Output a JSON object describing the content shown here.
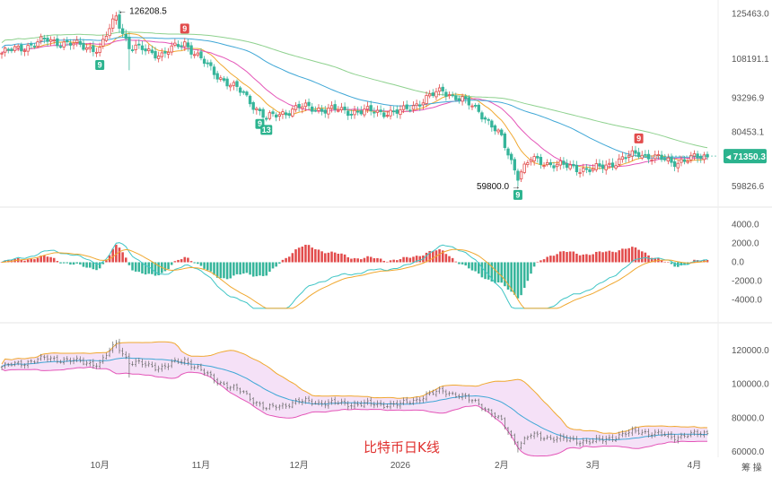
{
  "chart_data": [
    {
      "type": "candlestick",
      "panel": "price",
      "title": "",
      "y_ticks": [
        "125463.0",
        "108191.1",
        "93296.9",
        "80453.1",
        "59826.6"
      ],
      "ylim": [
        55000,
        128000
      ],
      "current_price": "71350.3",
      "high_annotation": "126208.5",
      "low_annotation": "59800.0",
      "badges": [
        {
          "label": "9",
          "x": "2025-10-01",
          "kind": "green"
        },
        {
          "label": "9",
          "x": "2025-10-27",
          "kind": "red"
        },
        {
          "label": "9",
          "x": "2025-11-19",
          "kind": "green"
        },
        {
          "label": "13",
          "x": "2025-11-21",
          "kind": "green"
        },
        {
          "label": "9",
          "x": "2026-02-06",
          "kind": "green"
        },
        {
          "label": "9",
          "x": "2026-03-15",
          "kind": "red"
        }
      ],
      "anchors_close": [
        [
          "2025-09-01",
          110500
        ],
        [
          "2025-09-15",
          115500
        ],
        [
          "2025-10-01",
          112000
        ],
        [
          "2025-10-06",
          124500
        ],
        [
          "2025-10-10",
          113000
        ],
        [
          "2025-10-20",
          110000
        ],
        [
          "2025-10-27",
          114500
        ],
        [
          "2025-11-05",
          103000
        ],
        [
          "2025-11-14",
          95000
        ],
        [
          "2025-11-21",
          85500
        ],
        [
          "2025-12-01",
          90000
        ],
        [
          "2025-12-15",
          88500
        ],
        [
          "2026-01-01",
          88000
        ],
        [
          "2026-01-14",
          96500
        ],
        [
          "2026-01-25",
          89000
        ],
        [
          "2026-02-01",
          78000
        ],
        [
          "2026-02-06",
          64000
        ],
        [
          "2026-02-10",
          70000
        ],
        [
          "2026-02-20",
          67500
        ],
        [
          "2026-03-01",
          66000
        ],
        [
          "2026-03-15",
          72500
        ],
        [
          "2026-03-25",
          69000
        ],
        [
          "2026-04-05",
          71350
        ]
      ],
      "ma_series_colors": [
        "#f0a830",
        "#e455b8",
        "#3fa7d6",
        "#8ed18e"
      ]
    },
    {
      "type": "bar",
      "panel": "macd",
      "y_ticks": [
        "4000.0",
        "2000.0",
        "0.0",
        "-2000.0",
        "-4000.0"
      ],
      "ylim": [
        -5000,
        5000
      ],
      "positive_color": "#e24c4c",
      "negative_color": "#36b59b",
      "line_colors": [
        "#3fc5c5",
        "#f0a830"
      ]
    },
    {
      "type": "area",
      "panel": "bollinger",
      "y_ticks": [
        "120000.0",
        "100000.0",
        "80000.0",
        "60000.0"
      ],
      "ylim": [
        58000,
        130000
      ],
      "band_fill": "#f3d9f5",
      "upper_color": "#f0a830",
      "lower_color": "#e455b8",
      "middle_color": "#3fa7d6"
    }
  ],
  "x_ticks": [
    "10月",
    "11月",
    "12月",
    "2026",
    "2月",
    "3月",
    "4月"
  ],
  "caption": "比特币日K线",
  "watermark": "筹 操"
}
